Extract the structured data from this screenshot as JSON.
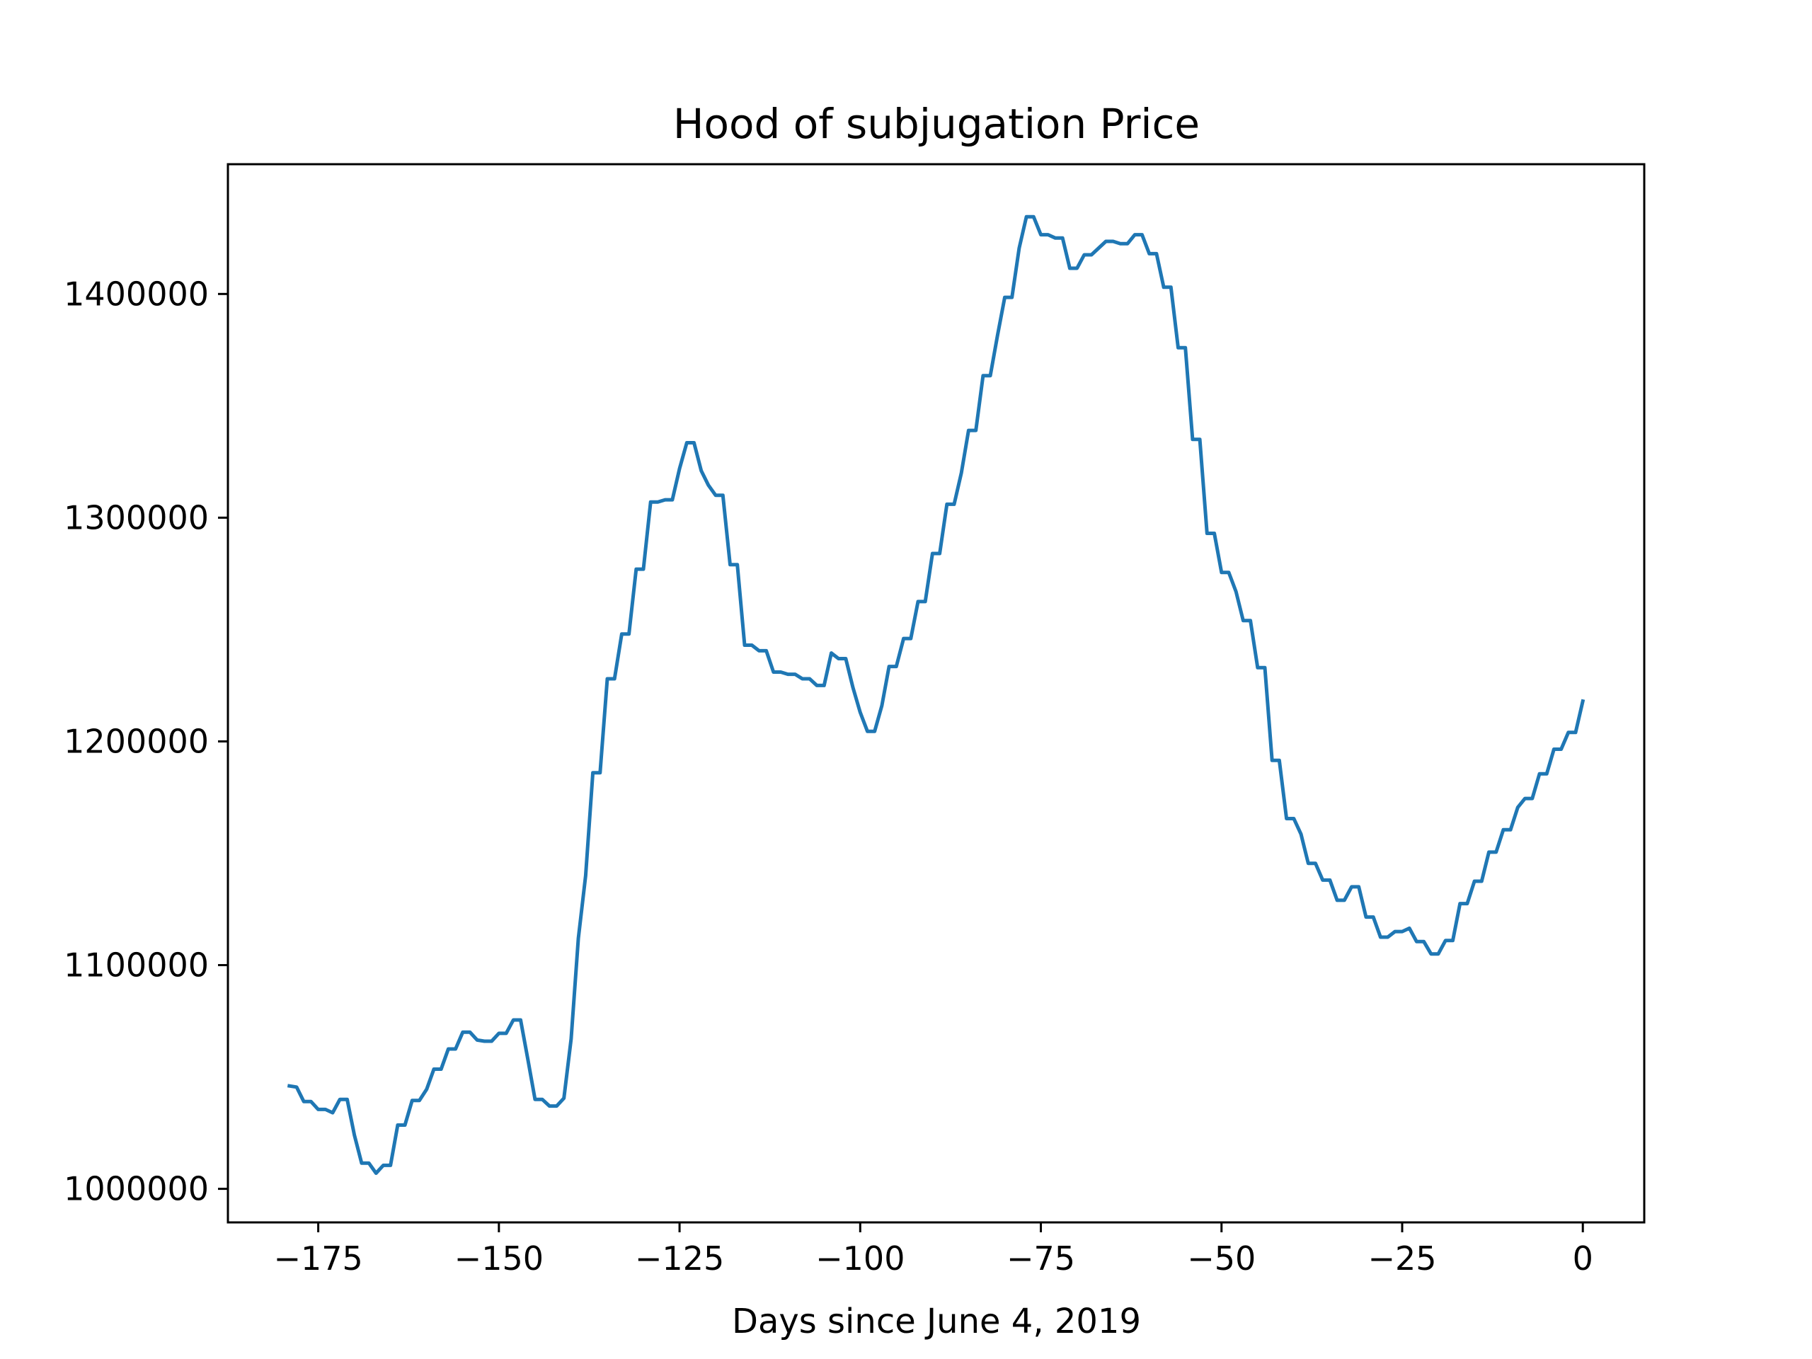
{
  "chart_data": {
    "type": "line",
    "title": "Hood of subjugation Price",
    "xlabel": "Days since June 4, 2019",
    "ylabel": "",
    "xlim": [
      -187.5,
      8.5
    ],
    "ylim": [
      985000,
      1458000
    ],
    "x_ticks": [
      -175,
      -150,
      -125,
      -100,
      -75,
      -50,
      -25,
      0
    ],
    "x_tick_labels": [
      "−175",
      "−150",
      "−125",
      "−100",
      "−75",
      "−50",
      "−25",
      "0"
    ],
    "y_ticks": [
      1000000,
      1100000,
      1200000,
      1300000,
      1400000
    ],
    "y_tick_labels": [
      "1000000",
      "1100000",
      "1200000",
      "1300000",
      "1400000"
    ],
    "grid": false,
    "legend": "none",
    "series": [
      {
        "color": "#1f77b4",
        "x": [
          -179,
          -178,
          -177,
          -176,
          -175,
          -174,
          -173,
          -172,
          -171,
          -170,
          -169,
          -168,
          -167,
          -166,
          -165,
          -164,
          -163,
          -162,
          -161,
          -160,
          -159,
          -158,
          -157,
          -156,
          -155,
          -154,
          -153,
          -152,
          -151,
          -150,
          -149,
          -148,
          -147,
          -146,
          -145,
          -144,
          -143,
          -142,
          -141,
          -140,
          -139,
          -138,
          -137,
          -136,
          -135,
          -134,
          -133,
          -132,
          -131,
          -130,
          -129,
          -128,
          -127,
          -126,
          -125,
          -124,
          -123,
          -122,
          -121,
          -120,
          -119,
          -118,
          -117,
          -116,
          -115,
          -114,
          -113,
          -112,
          -111,
          -110,
          -109,
          -108,
          -107,
          -106,
          -105,
          -104,
          -103,
          -102,
          -101,
          -100,
          -99,
          -98,
          -97,
          -96,
          -95,
          -94,
          -93,
          -92,
          -91,
          -90,
          -89,
          -88,
          -87,
          -86,
          -85,
          -84,
          -83,
          -82,
          -81,
          -80,
          -79,
          -78,
          -77,
          -76,
          -75,
          -74,
          -73,
          -72,
          -71,
          -70,
          -69,
          -68,
          -67,
          -66,
          -65,
          -64,
          -63,
          -62,
          -61,
          -60,
          -59,
          -58,
          -57,
          -56,
          -55,
          -54,
          -53,
          -52,
          -51,
          -50,
          -49,
          -48,
          -47,
          -46,
          -45,
          -44,
          -43,
          -42,
          -41,
          -40,
          -39,
          -38,
          -37,
          -36,
          -35,
          -34,
          -33,
          -32,
          -31,
          -30,
          -29,
          -28,
          -27,
          -26,
          -25,
          -24,
          -23,
          -22,
          -21,
          -20,
          -19,
          -18,
          -17,
          -16,
          -15,
          -14,
          -13,
          -12,
          -11,
          -10,
          -9,
          -8,
          -7,
          -6,
          -5,
          -4,
          -3,
          -2,
          -1,
          0
        ],
        "y": [
          1046000,
          1045500,
          1039000,
          1039000,
          1035500,
          1035500,
          1034000,
          1040000,
          1040000,
          1024000,
          1011500,
          1011500,
          1007000,
          1010500,
          1010500,
          1028500,
          1028500,
          1039500,
          1039500,
          1044500,
          1053500,
          1053500,
          1062500,
          1062500,
          1070000,
          1070000,
          1066500,
          1066000,
          1066000,
          1069500,
          1069500,
          1075500,
          1075500,
          1058000,
          1040000,
          1040000,
          1037000,
          1037000,
          1040500,
          1067000,
          1112000,
          1140000,
          1186000,
          1186000,
          1228000,
          1228000,
          1248000,
          1248000,
          1277000,
          1277000,
          1307000,
          1307000,
          1308000,
          1308000,
          1322000,
          1333500,
          1333500,
          1321000,
          1314500,
          1310000,
          1310000,
          1279000,
          1279000,
          1243000,
          1243000,
          1240500,
          1240500,
          1231000,
          1231000,
          1230000,
          1230000,
          1228000,
          1228000,
          1225000,
          1225000,
          1239500,
          1237000,
          1237000,
          1224000,
          1213000,
          1204500,
          1204500,
          1216000,
          1233500,
          1233500,
          1246000,
          1246000,
          1262500,
          1262500,
          1284000,
          1284000,
          1306000,
          1306000,
          1320000,
          1339000,
          1339000,
          1363500,
          1363500,
          1381500,
          1398500,
          1398500,
          1420500,
          1434500,
          1434500,
          1426500,
          1426500,
          1425000,
          1425000,
          1411500,
          1411500,
          1417500,
          1417500,
          1420500,
          1423500,
          1423500,
          1422500,
          1422500,
          1426500,
          1426500,
          1418000,
          1418000,
          1403000,
          1403000,
          1376000,
          1376000,
          1335000,
          1335000,
          1293000,
          1293000,
          1275500,
          1275500,
          1267000,
          1254000,
          1254000,
          1233000,
          1233000,
          1191500,
          1191500,
          1165500,
          1165500,
          1158500,
          1145500,
          1145500,
          1138000,
          1138000,
          1129000,
          1129000,
          1135000,
          1135000,
          1121500,
          1121500,
          1112500,
          1112500,
          1115000,
          1115000,
          1116500,
          1110500,
          1110500,
          1105000,
          1105000,
          1111000,
          1111000,
          1127500,
          1127500,
          1137500,
          1137500,
          1150500,
          1150500,
          1160500,
          1160500,
          1170500,
          1174500,
          1174500,
          1185500,
          1185500,
          1196500,
          1196500,
          1204000,
          1204000,
          1218000
        ]
      }
    ]
  }
}
